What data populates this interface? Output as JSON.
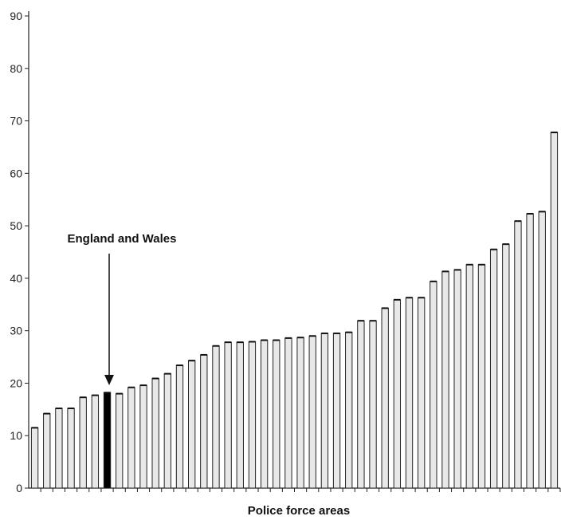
{
  "chart_data": {
    "type": "bar",
    "xlabel": "Police force areas",
    "ylabel": "",
    "ylim": [
      0,
      90
    ],
    "yticks": [
      0,
      10,
      20,
      30,
      40,
      50,
      60,
      70,
      80,
      90
    ],
    "grid": false,
    "legend": "none",
    "bar_fill": "#e8e8e8",
    "bar_stroke": "#222222",
    "highlight_fill": "#000000",
    "highlight_index": 6,
    "annotation": "England and Wales",
    "values": [
      11.5,
      14.2,
      15.2,
      15.2,
      17.3,
      17.7,
      18.2,
      18.0,
      19.2,
      19.6,
      20.9,
      21.8,
      23.4,
      24.3,
      25.4,
      27.1,
      27.8,
      27.8,
      27.9,
      28.2,
      28.2,
      28.6,
      28.7,
      29.0,
      29.5,
      29.5,
      29.7,
      31.9,
      31.9,
      34.3,
      35.9,
      36.3,
      36.3,
      39.4,
      41.3,
      41.6,
      42.6,
      42.6,
      45.5,
      46.5,
      50.9,
      52.3,
      52.7,
      67.8
    ]
  }
}
